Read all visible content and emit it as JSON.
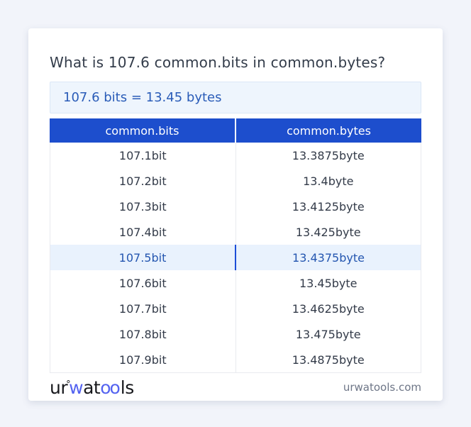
{
  "title": "What is 107.6 common.bits in common.bytes?",
  "result_text": "107.6 bits = 13.45 bytes",
  "table": {
    "headers": [
      "common.bits",
      "common.bytes"
    ],
    "rows": [
      {
        "bits": "107.1bit",
        "bytes": "13.3875byte",
        "highlighted": false
      },
      {
        "bits": "107.2bit",
        "bytes": "13.4byte",
        "highlighted": false
      },
      {
        "bits": "107.3bit",
        "bytes": "13.4125byte",
        "highlighted": false
      },
      {
        "bits": "107.4bit",
        "bytes": "13.425byte",
        "highlighted": false
      },
      {
        "bits": "107.5bit",
        "bytes": "13.4375byte",
        "highlighted": true
      },
      {
        "bits": "107.6bit",
        "bytes": "13.45byte",
        "highlighted": false
      },
      {
        "bits": "107.7bit",
        "bytes": "13.4625byte",
        "highlighted": false
      },
      {
        "bits": "107.8bit",
        "bytes": "13.475byte",
        "highlighted": false
      },
      {
        "bits": "107.9bit",
        "bytes": "13.4875byte",
        "highlighted": false
      }
    ]
  },
  "footer": {
    "logo_segments": [
      {
        "text": "ur",
        "style": "plain",
        "color": "#17181c"
      },
      {
        "text": "°",
        "style": "degree",
        "color": "#17181c"
      },
      {
        "text": "w",
        "style": "plain",
        "color": "#5463f0"
      },
      {
        "text": "at",
        "style": "plain",
        "color": "#17181c"
      },
      {
        "text": "oo",
        "style": "rings",
        "color": "#5463f0"
      },
      {
        "text": "ls",
        "style": "plain",
        "color": "#17181c"
      }
    ],
    "site_label": "urwatools.com"
  },
  "colors": {
    "page_bg": "#f2f4fa",
    "card_bg": "#ffffff",
    "title_text": "#333c4a",
    "header_bg": "#1d4ecd",
    "header_text": "#ffffff",
    "result_bg": "#eef5fd",
    "result_border": "#dbe7f6",
    "result_text": "#2a5cb8",
    "highlight_bg": "#e9f2fd",
    "highlight_text": "#2456b0",
    "highlight_divider": "#1d4ed8",
    "body_text": "#333b49",
    "table_border": "#e8eaef",
    "footer_text": "#6e7687"
  }
}
